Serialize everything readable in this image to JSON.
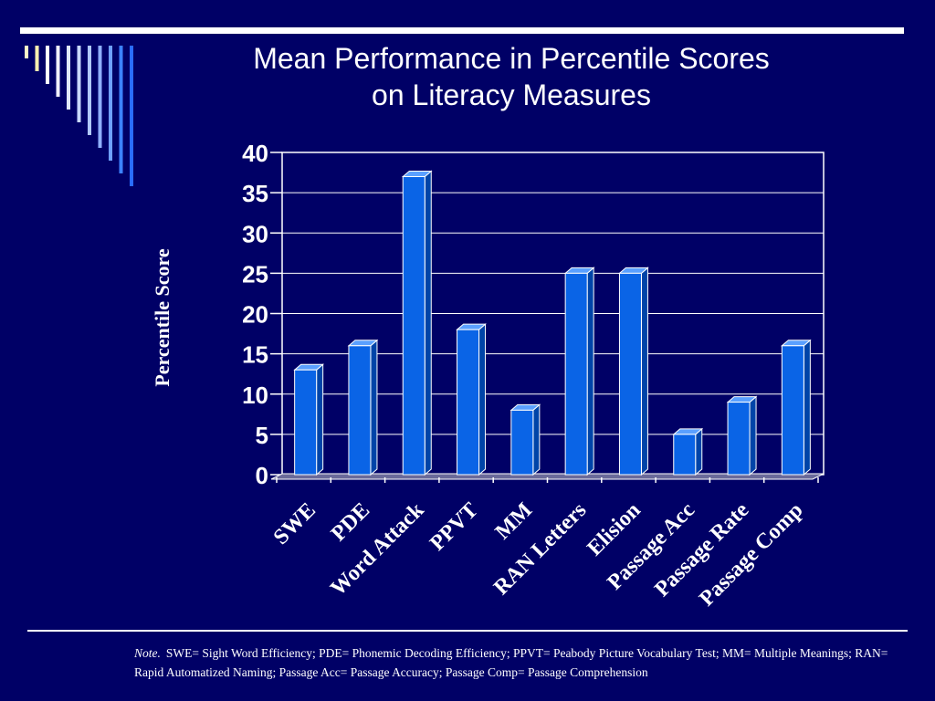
{
  "title_line1": "Mean Performance in Percentile Scores",
  "title_line2": "on Literacy Measures",
  "note_label": "Note.",
  "note_text": "SWE= Sight Word Efficiency; PDE= Phonemic Decoding Efficiency; PPVT= Peabody Picture Vocabulary Test; MM= Multiple Meanings; RAN= Rapid Automatized Naming; Passage Acc= Passage Accuracy; Passage Comp= Passage Comprehension",
  "colors": {
    "background": "#000066",
    "bar_front": "#0a64e6",
    "bar_top": "#5aa0ff",
    "bar_side": "#0044a8",
    "text": "#ffffff"
  },
  "chart_data": {
    "type": "bar",
    "categories": [
      "SWE",
      "PDE",
      "Word Attack",
      "PPVT",
      "MM",
      "RAN Letters",
      "Elision",
      "Passage Acc",
      "Passage Rate",
      "Passage Comp"
    ],
    "values": [
      13,
      16,
      37,
      18,
      8,
      25,
      25,
      5,
      9,
      16
    ],
    "ylabel": "Percentile Score",
    "xlabel": "",
    "ylim": [
      0,
      40
    ],
    "yticks": [
      0,
      5,
      10,
      15,
      20,
      25,
      30,
      35,
      40
    ],
    "grid": true,
    "style": "3d"
  }
}
